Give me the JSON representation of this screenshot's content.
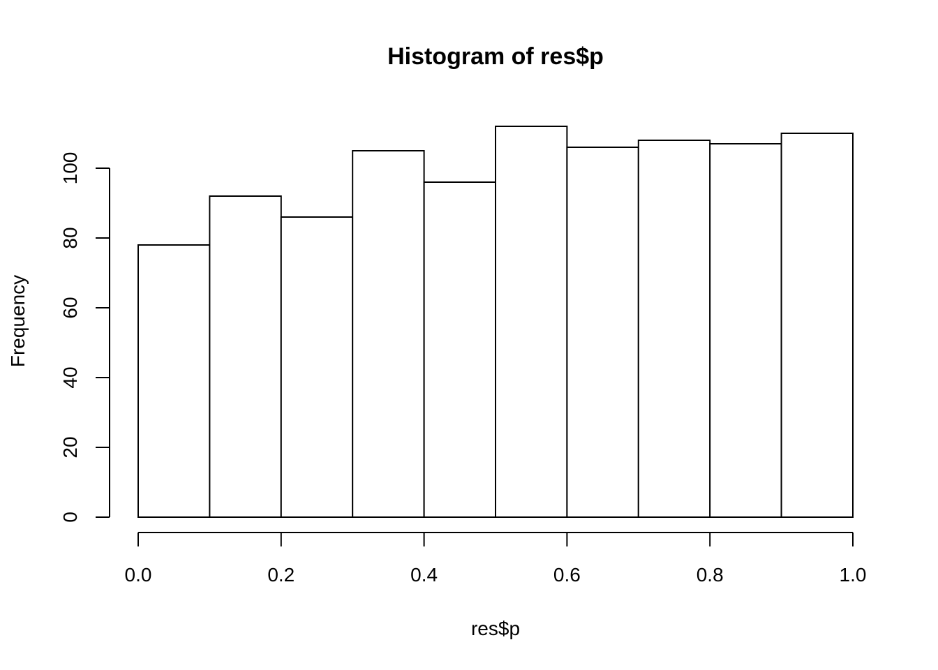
{
  "chart_data": {
    "type": "bar",
    "title": "Histogram of res$p",
    "xlabel": "res$p",
    "ylabel": "Frequency",
    "bins": [
      {
        "start": 0.0,
        "end": 0.1,
        "count": 78
      },
      {
        "start": 0.1,
        "end": 0.2,
        "count": 92
      },
      {
        "start": 0.2,
        "end": 0.3,
        "count": 86
      },
      {
        "start": 0.3,
        "end": 0.4,
        "count": 105
      },
      {
        "start": 0.4,
        "end": 0.5,
        "count": 96
      },
      {
        "start": 0.5,
        "end": 0.6,
        "count": 112
      },
      {
        "start": 0.6,
        "end": 0.7,
        "count": 106
      },
      {
        "start": 0.7,
        "end": 0.8,
        "count": 108
      },
      {
        "start": 0.8,
        "end": 0.9,
        "count": 107
      },
      {
        "start": 0.9,
        "end": 1.0,
        "count": 110
      }
    ],
    "xlim": [
      0,
      1
    ],
    "ylim": [
      0,
      112
    ],
    "x_ticks": [
      {
        "value": 0.0,
        "label": "0.0"
      },
      {
        "value": 0.2,
        "label": "0.2"
      },
      {
        "value": 0.4,
        "label": "0.4"
      },
      {
        "value": 0.6,
        "label": "0.6"
      },
      {
        "value": 0.8,
        "label": "0.8"
      },
      {
        "value": 1.0,
        "label": "1.0"
      }
    ],
    "y_ticks": [
      {
        "value": 0,
        "label": "0"
      },
      {
        "value": 20,
        "label": "20"
      },
      {
        "value": 40,
        "label": "40"
      },
      {
        "value": 60,
        "label": "60"
      },
      {
        "value": 80,
        "label": "80"
      },
      {
        "value": 100,
        "label": "100"
      }
    ],
    "grid": false,
    "legend": "none",
    "bar_fill": "#ffffff",
    "bar_stroke": "#000000"
  }
}
